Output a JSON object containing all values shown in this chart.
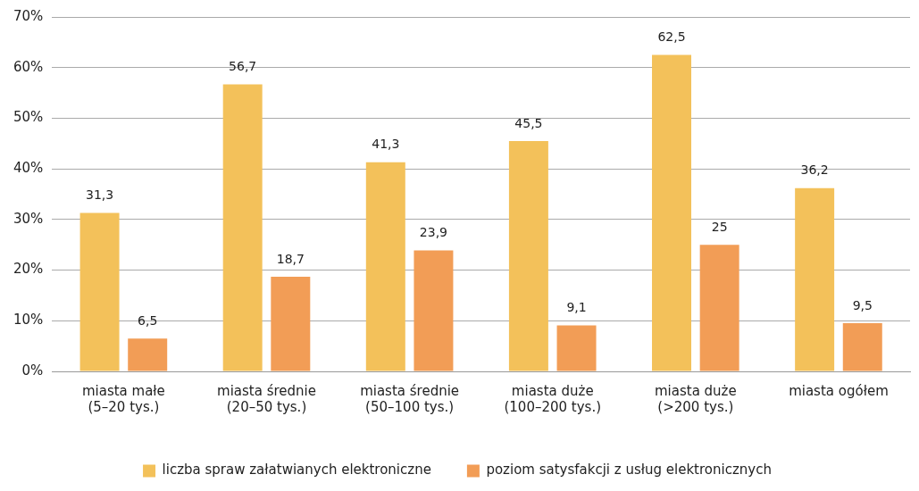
{
  "chart_data": {
    "type": "bar",
    "categories": [
      "miasta małe\n(5–20 tys.)",
      "miasta średnie\n(20–50 tys.)",
      "miasta średnie\n(50–100 tys.)",
      "miasta duże\n(100–200 tys.)",
      "miasta duże\n(>200 tys.)",
      "miasta ogółem"
    ],
    "series": [
      {
        "name": "liczba spraw załatwianych elektroniczne",
        "color": "#f3c15a",
        "values": [
          31.3,
          56.7,
          41.3,
          45.5,
          62.5,
          36.2
        ],
        "value_labels": [
          "31,3",
          "56,7",
          "41,3",
          "45,5",
          "62,5",
          "36,2"
        ]
      },
      {
        "name": "poziom satysfakcji z usług elektronicznych",
        "color": "#f29d56",
        "values": [
          6.5,
          18.7,
          23.9,
          9.1,
          25,
          9.5
        ],
        "value_labels": [
          "6,5",
          "18,7",
          "23,9",
          "9,1",
          "25",
          "9,5"
        ]
      }
    ],
    "ylim": [
      0,
      70
    ],
    "yticks": [
      {
        "value": 0,
        "label": "0%"
      },
      {
        "value": 10,
        "label": "10%"
      },
      {
        "value": 20,
        "label": "20%"
      },
      {
        "value": 30,
        "label": "30%"
      },
      {
        "value": 40,
        "label": "40%"
      },
      {
        "value": 50,
        "label": "50%"
      },
      {
        "value": 60,
        "label": "60%"
      },
      {
        "value": 70,
        "label": "70%"
      }
    ],
    "grid": "y",
    "legend": "bottom"
  }
}
